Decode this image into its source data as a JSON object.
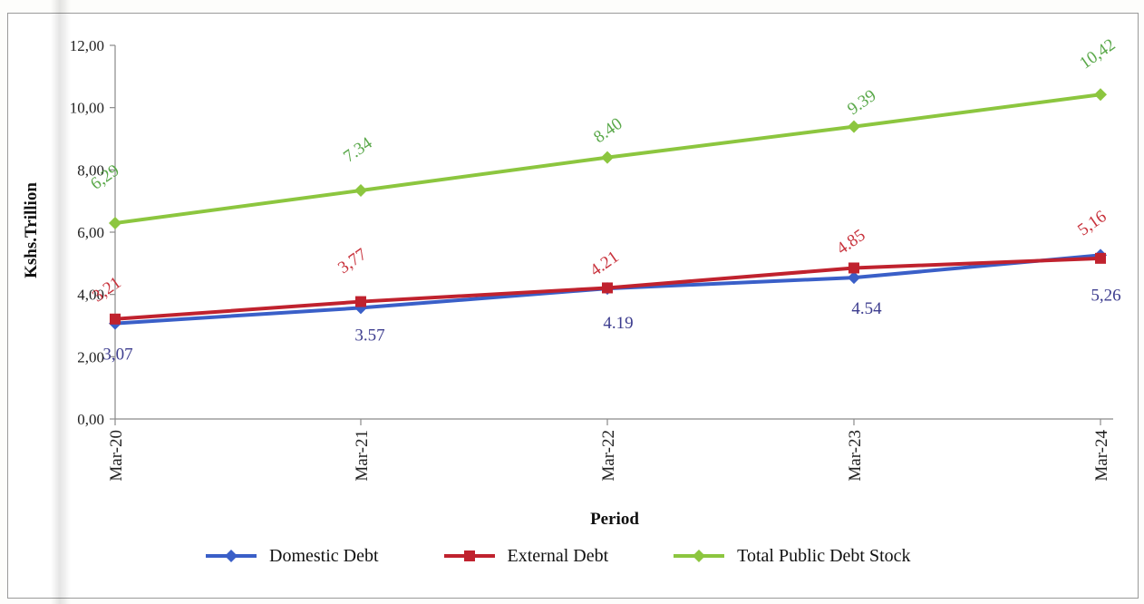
{
  "chart_data": {
    "type": "line",
    "categories": [
      "Mar-20",
      "Mar-21",
      "Mar-22",
      "Mar-23",
      "Mar-24"
    ],
    "series": [
      {
        "name": "Domestic Debt",
        "values": [
          3.07,
          3.57,
          4.19,
          4.54,
          5.26
        ],
        "labels": [
          "3,07",
          "3.57",
          "4.19",
          "4.54",
          "5,26"
        ],
        "color": "#3a5fc8",
        "label_color": "#3d3d8f",
        "marker": "diamond"
      },
      {
        "name": "External Debt",
        "values": [
          3.21,
          3.77,
          4.21,
          4.85,
          5.16
        ],
        "labels": [
          "3,21",
          "3,77",
          "4.21",
          "4.85",
          "5,16"
        ],
        "color": "#c0222e",
        "label_color": "#c8323c",
        "marker": "square"
      },
      {
        "name": "Total Public Debt Stock",
        "values": [
          6.29,
          7.34,
          8.4,
          9.39,
          10.42
        ],
        "labels": [
          "6,29",
          "7.34",
          "8.40",
          "9.39",
          "10,42"
        ],
        "color": "#8cc63f",
        "label_color": "#5aa84a",
        "marker": "diamond"
      }
    ],
    "xlabel": "Period",
    "ylabel": "Kshs.Trillion",
    "ylim": [
      0,
      12
    ],
    "yticks": [
      0,
      2,
      4,
      6,
      8,
      10,
      12
    ],
    "ytick_labels": [
      "0,00",
      "2,00",
      "4,00",
      "6,00",
      "8,00",
      "10,00",
      "12,00"
    ],
    "grid": false,
    "legend_position": "bottom"
  }
}
